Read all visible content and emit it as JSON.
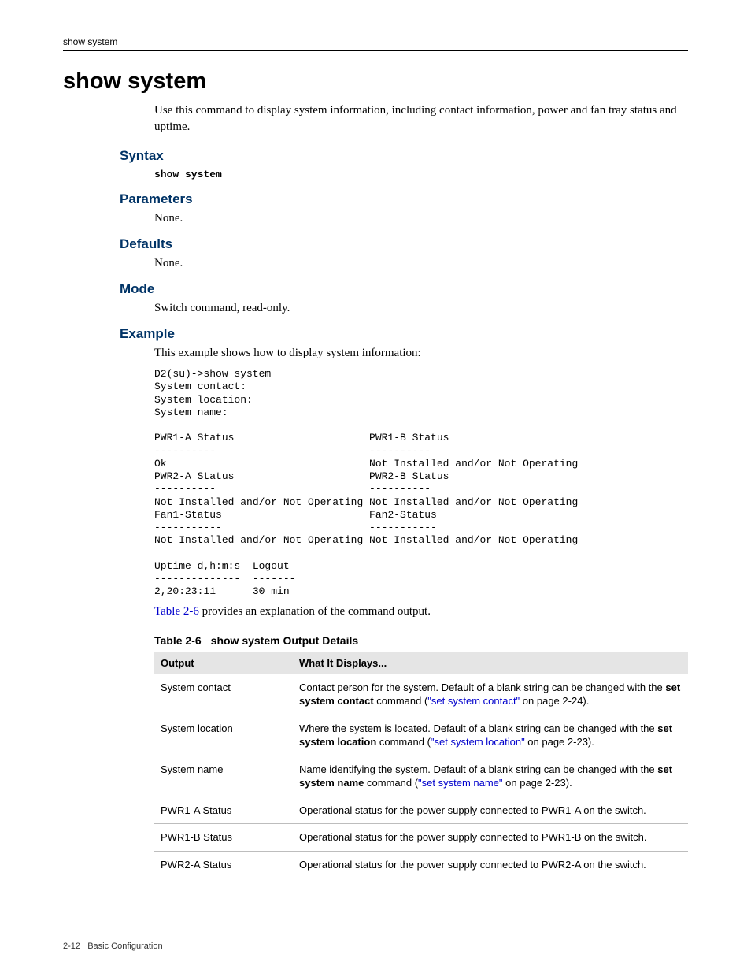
{
  "header": {
    "running": "show system"
  },
  "title": "show system",
  "intro": "Use this command to display system information, including contact information, power and fan tray status and uptime.",
  "sections": {
    "syntax": {
      "heading": "Syntax",
      "code": "show system"
    },
    "parameters": {
      "heading": "Parameters",
      "text": "None."
    },
    "defaults": {
      "heading": "Defaults",
      "text": "None."
    },
    "mode": {
      "heading": "Mode",
      "text": "Switch command, read-only."
    },
    "example": {
      "heading": "Example",
      "lead": "This example shows how to display system information:",
      "code": "D2(su)->show system\nSystem contact:\nSystem location:\nSystem name:\n\nPWR1-A Status                      PWR1-B Status\n----------                         ----------\nOk                                 Not Installed and/or Not Operating\nPWR2-A Status                      PWR2-B Status\n----------                         ----------\nNot Installed and/or Not Operating Not Installed and/or Not Operating\nFan1-Status                        Fan2-Status\n-----------                        -----------\nNot Installed and/or Not Operating Not Installed and/or Not Operating\n\nUptime d,h:m:s  Logout\n--------------  -------\n2,20:23:11      30 min"
    }
  },
  "table_ref": {
    "link": "Table 2-6",
    "rest": " provides an explanation of the command output."
  },
  "table": {
    "caption_num": "Table 2-6",
    "caption_title": "show system Output Details",
    "columns": [
      "Output",
      "What It Displays..."
    ],
    "rows": [
      {
        "output": "System contact",
        "pre": "Contact person for the system. Default of a blank string can be changed with the ",
        "bold": "set system contact",
        "mid": " command (",
        "link": "\"set system contact\"",
        "post": " on page 2-24)."
      },
      {
        "output": "System location",
        "pre": "Where the system is located. Default of a blank string can be changed with the ",
        "bold": "set system location",
        "mid": " command (",
        "link": "\"set system location\"",
        "post": " on page 2-23)."
      },
      {
        "output": "System name",
        "pre": "Name identifying the system. Default of a blank string can be changed with the ",
        "bold": "set system name",
        "mid": " command (",
        "link": "\"set system name\"",
        "post": " on page 2-23)."
      },
      {
        "output": "PWR1-A Status",
        "pre": "Operational status for the power supply connected to PWR1-A on the switch.",
        "bold": "",
        "mid": "",
        "link": "",
        "post": ""
      },
      {
        "output": "PWR1-B Status",
        "pre": "Operational status for the power supply connected to PWR1-B on the switch.",
        "bold": "",
        "mid": "",
        "link": "",
        "post": ""
      },
      {
        "output": "PWR2-A Status",
        "pre": "Operational status for the power supply connected to PWR2-A on the switch.",
        "bold": "",
        "mid": "",
        "link": "",
        "post": ""
      }
    ]
  },
  "footer": {
    "page": "2-12",
    "section": "Basic Configuration"
  },
  "colors": {
    "heading": "#003366",
    "link": "#0000cc",
    "table_header_bg": "#e5e5e5",
    "table_border": "#bdbdbd"
  }
}
